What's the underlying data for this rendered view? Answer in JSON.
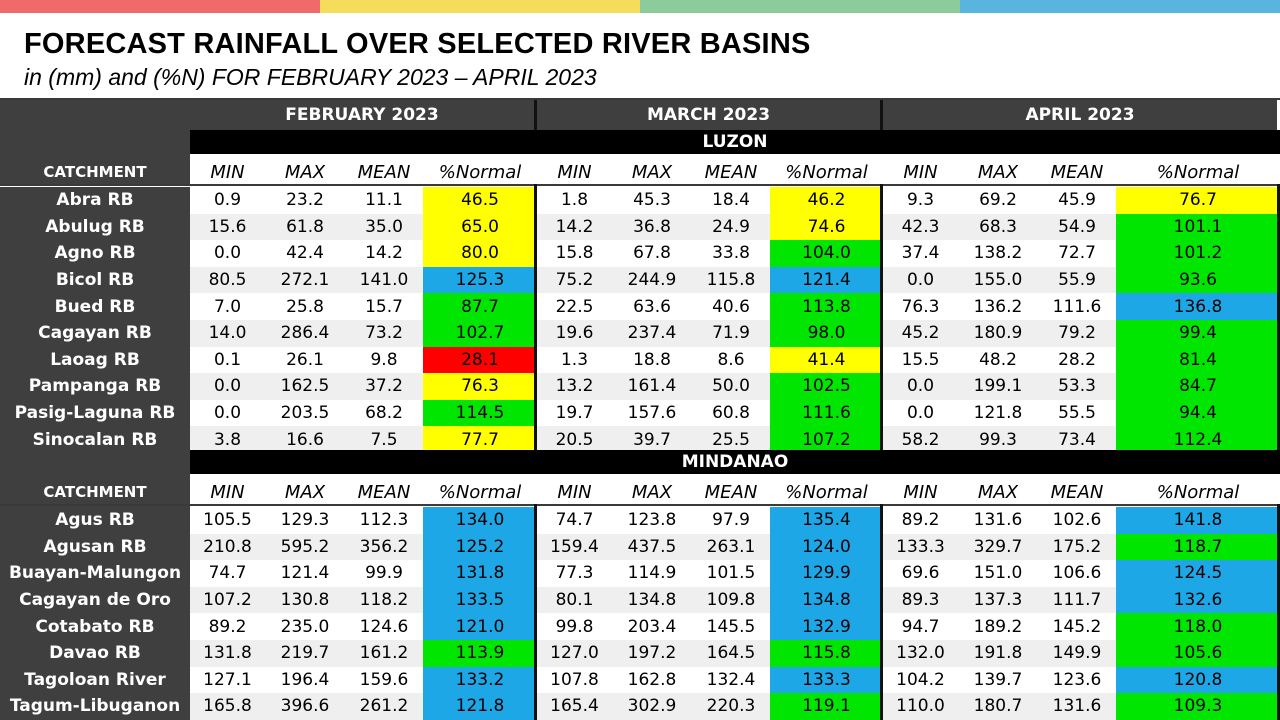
{
  "top_bar_colors": [
    "#f06a6a",
    "#f5dc5a",
    "#8ccb9a",
    "#5ab4e0"
  ],
  "title": "FORECAST RAINFALL OVER SELECTED RIVER BASINS",
  "subtitle": "in (mm) and (%N) FOR  FEBRUARY 2023 – APRIL 2023",
  "months": [
    "FEBRUARY 2023",
    "MARCH 2023",
    "APRIL 2023"
  ],
  "column_headers": [
    "MIN",
    "MAX",
    "MEAN",
    "%Normal"
  ],
  "catchment_label": "CATCHMENT",
  "status_colors": {
    "yellow": "#ffff00",
    "green": "#00e600",
    "blue": "#1ea7e6",
    "red": "#ff0000"
  },
  "regions": [
    {
      "name": "LUZON",
      "rows": [
        {
          "name": "Abra RB",
          "values": [
            [
              "0.9",
              "23.2",
              "11.1",
              "46.5"
            ],
            [
              "1.8",
              "45.3",
              "18.4",
              "46.2"
            ],
            [
              "9.3",
              "69.2",
              "45.9",
              "76.7"
            ]
          ],
          "colors": [
            "yellow",
            "yellow",
            "yellow"
          ]
        },
        {
          "name": "Abulug RB",
          "values": [
            [
              "15.6",
              "61.8",
              "35.0",
              "65.0"
            ],
            [
              "14.2",
              "36.8",
              "24.9",
              "74.6"
            ],
            [
              "42.3",
              "68.3",
              "54.9",
              "101.1"
            ]
          ],
          "colors": [
            "yellow",
            "yellow",
            "green"
          ]
        },
        {
          "name": "Agno RB",
          "values": [
            [
              "0.0",
              "42.4",
              "14.2",
              "80.0"
            ],
            [
              "15.8",
              "67.8",
              "33.8",
              "104.0"
            ],
            [
              "37.4",
              "138.2",
              "72.7",
              "101.2"
            ]
          ],
          "colors": [
            "yellow",
            "green",
            "green"
          ]
        },
        {
          "name": "Bicol RB",
          "values": [
            [
              "80.5",
              "272.1",
              "141.0",
              "125.3"
            ],
            [
              "75.2",
              "244.9",
              "115.8",
              "121.4"
            ],
            [
              "0.0",
              "155.0",
              "55.9",
              "93.6"
            ]
          ],
          "colors": [
            "blue",
            "blue",
            "green"
          ]
        },
        {
          "name": "Bued RB",
          "values": [
            [
              "7.0",
              "25.8",
              "15.7",
              "87.7"
            ],
            [
              "22.5",
              "63.6",
              "40.6",
              "113.8"
            ],
            [
              "76.3",
              "136.2",
              "111.6",
              "136.8"
            ]
          ],
          "colors": [
            "green",
            "green",
            "blue"
          ]
        },
        {
          "name": "Cagayan RB",
          "values": [
            [
              "14.0",
              "286.4",
              "73.2",
              "102.7"
            ],
            [
              "19.6",
              "237.4",
              "71.9",
              "98.0"
            ],
            [
              "45.2",
              "180.9",
              "79.2",
              "99.4"
            ]
          ],
          "colors": [
            "green",
            "green",
            "green"
          ]
        },
        {
          "name": "Laoag RB",
          "values": [
            [
              "0.1",
              "26.1",
              "9.8",
              "28.1"
            ],
            [
              "1.3",
              "18.8",
              "8.6",
              "41.4"
            ],
            [
              "15.5",
              "48.2",
              "28.2",
              "81.4"
            ]
          ],
          "colors": [
            "red",
            "yellow",
            "green"
          ]
        },
        {
          "name": "Pampanga RB",
          "values": [
            [
              "0.0",
              "162.5",
              "37.2",
              "76.3"
            ],
            [
              "13.2",
              "161.4",
              "50.0",
              "102.5"
            ],
            [
              "0.0",
              "199.1",
              "53.3",
              "84.7"
            ]
          ],
          "colors": [
            "yellow",
            "green",
            "green"
          ]
        },
        {
          "name": "Pasig-Laguna RB",
          "values": [
            [
              "0.0",
              "203.5",
              "68.2",
              "114.5"
            ],
            [
              "19.7",
              "157.6",
              "60.8",
              "111.6"
            ],
            [
              "0.0",
              "121.8",
              "55.5",
              "94.4"
            ]
          ],
          "colors": [
            "green",
            "green",
            "green"
          ]
        },
        {
          "name": "Sinocalan RB",
          "values": [
            [
              "3.8",
              "16.6",
              "7.5",
              "77.7"
            ],
            [
              "20.5",
              "39.7",
              "25.5",
              "107.2"
            ],
            [
              "58.2",
              "99.3",
              "73.4",
              "112.4"
            ]
          ],
          "colors": [
            "yellow",
            "green",
            "green"
          ]
        }
      ]
    },
    {
      "name": "MINDANAO",
      "rows": [
        {
          "name": "Agus RB",
          "values": [
            [
              "105.5",
              "129.3",
              "112.3",
              "134.0"
            ],
            [
              "74.7",
              "123.8",
              "97.9",
              "135.4"
            ],
            [
              "89.2",
              "131.6",
              "102.6",
              "141.8"
            ]
          ],
          "colors": [
            "blue",
            "blue",
            "blue"
          ]
        },
        {
          "name": "Agusan RB",
          "values": [
            [
              "210.8",
              "595.2",
              "356.2",
              "125.2"
            ],
            [
              "159.4",
              "437.5",
              "263.1",
              "124.0"
            ],
            [
              "133.3",
              "329.7",
              "175.2",
              "118.7"
            ]
          ],
          "colors": [
            "blue",
            "blue",
            "green"
          ]
        },
        {
          "name": "Buayan-Malungon",
          "values": [
            [
              "74.7",
              "121.4",
              "99.9",
              "131.8"
            ],
            [
              "77.3",
              "114.9",
              "101.5",
              "129.9"
            ],
            [
              "69.6",
              "151.0",
              "106.6",
              "124.5"
            ]
          ],
          "colors": [
            "blue",
            "blue",
            "blue"
          ]
        },
        {
          "name": "Cagayan de Oro",
          "values": [
            [
              "107.2",
              "130.8",
              "118.2",
              "133.5"
            ],
            [
              "80.1",
              "134.8",
              "109.8",
              "134.8"
            ],
            [
              "89.3",
              "137.3",
              "111.7",
              "132.6"
            ]
          ],
          "colors": [
            "blue",
            "blue",
            "blue"
          ]
        },
        {
          "name": "Cotabato RB",
          "values": [
            [
              "89.2",
              "235.0",
              "124.6",
              "121.0"
            ],
            [
              "99.8",
              "203.4",
              "145.5",
              "132.9"
            ],
            [
              "94.7",
              "189.2",
              "145.2",
              "118.0"
            ]
          ],
          "colors": [
            "blue",
            "blue",
            "green"
          ]
        },
        {
          "name": "Davao RB",
          "values": [
            [
              "131.8",
              "219.7",
              "161.2",
              "113.9"
            ],
            [
              "127.0",
              "197.2",
              "164.5",
              "115.8"
            ],
            [
              "132.0",
              "191.8",
              "149.9",
              "105.6"
            ]
          ],
          "colors": [
            "green",
            "green",
            "green"
          ]
        },
        {
          "name": "Tagoloan River",
          "values": [
            [
              "127.1",
              "196.4",
              "159.6",
              "133.2"
            ],
            [
              "107.8",
              "162.8",
              "132.4",
              "133.3"
            ],
            [
              "104.2",
              "139.7",
              "123.6",
              "120.8"
            ]
          ],
          "colors": [
            "blue",
            "blue",
            "blue"
          ]
        },
        {
          "name": "Tagum-Libuganon",
          "values": [
            [
              "165.8",
              "396.6",
              "261.2",
              "121.8"
            ],
            [
              "165.4",
              "302.9",
              "220.3",
              "119.1"
            ],
            [
              "110.0",
              "180.7",
              "131.6",
              "109.3"
            ]
          ],
          "colors": [
            "blue",
            "green",
            "green"
          ]
        }
      ]
    }
  ]
}
